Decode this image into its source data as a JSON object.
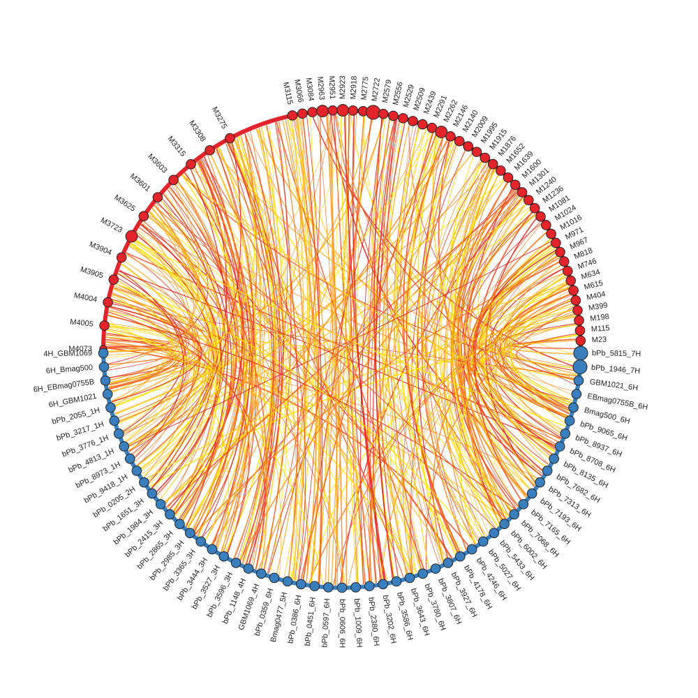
{
  "colors": {
    "red_group": "#e3242b",
    "blue_group": "#3a7fbd",
    "link_palette": [
      "#ffe600",
      "#ffd21f",
      "#ffa81f",
      "#ff7a1a",
      "#f5481f",
      "#e0201e"
    ]
  },
  "groups": {
    "red": {
      "nodes": [
        {
          "label": "M3115",
          "size": 3
        },
        {
          "label": "M3066",
          "size": 3
        },
        {
          "label": "M3084",
          "size": 3
        },
        {
          "label": "M2963",
          "size": 4
        },
        {
          "label": "M2951",
          "size": 3
        },
        {
          "label": "M2923",
          "size": 4
        },
        {
          "label": "M2918",
          "size": 3
        },
        {
          "label": "M2775",
          "size": 3
        },
        {
          "label": "M2722",
          "size": 5
        },
        {
          "label": "M2579",
          "size": 3
        },
        {
          "label": "M2556",
          "size": 3
        },
        {
          "label": "M2529",
          "size": 3
        },
        {
          "label": "M2509",
          "size": 3
        },
        {
          "label": "M2439",
          "size": 3
        },
        {
          "label": "M2291",
          "size": 3
        },
        {
          "label": "M2262",
          "size": 4
        },
        {
          "label": "M2146",
          "size": 3
        },
        {
          "label": "M2140",
          "size": 3
        },
        {
          "label": "M2009",
          "size": 3
        },
        {
          "label": "M1995",
          "size": 3
        },
        {
          "label": "M1915",
          "size": 3
        },
        {
          "label": "M1876",
          "size": 3
        },
        {
          "label": "M1652",
          "size": 3
        },
        {
          "label": "M1639",
          "size": 3
        },
        {
          "label": "M1600",
          "size": 3
        },
        {
          "label": "M1301",
          "size": 3
        },
        {
          "label": "M1240",
          "size": 3
        },
        {
          "label": "M1236",
          "size": 3
        },
        {
          "label": "M1081",
          "size": 3
        },
        {
          "label": "M1024",
          "size": 3
        },
        {
          "label": "M1016",
          "size": 3
        },
        {
          "label": "M971",
          "size": 3
        },
        {
          "label": "M967",
          "size": 3
        },
        {
          "label": "M818",
          "size": 3
        },
        {
          "label": "M746",
          "size": 3
        },
        {
          "label": "M634",
          "size": 3
        },
        {
          "label": "M615",
          "size": 3
        },
        {
          "label": "M404",
          "size": 3
        },
        {
          "label": "M399",
          "size": 3
        },
        {
          "label": "M198",
          "size": 3
        },
        {
          "label": "M115",
          "size": 3
        },
        {
          "label": "M23",
          "size": 3
        },
        {
          "label": "M4073",
          "size": 2
        },
        {
          "label": "M4005",
          "size": 3
        },
        {
          "label": "M4004",
          "size": 3
        },
        {
          "label": "M3905",
          "size": 3
        },
        {
          "label": "M3904",
          "size": 3
        },
        {
          "label": "M3723",
          "size": 4
        },
        {
          "label": "M3625",
          "size": 3
        },
        {
          "label": "M3601",
          "size": 3
        },
        {
          "label": "M3603",
          "size": 3
        },
        {
          "label": "M3315",
          "size": 3
        },
        {
          "label": "M3308",
          "size": 3
        },
        {
          "label": "M3275",
          "size": 3
        }
      ]
    },
    "blue": {
      "nodes": [
        {
          "label": "bPb_5815_7H",
          "size": 5
        },
        {
          "label": "bPb_1946_7H",
          "size": 5
        },
        {
          "label": "GBM1021_6H",
          "size": 3
        },
        {
          "label": "EBmag0755B_6H",
          "size": 3
        },
        {
          "label": "Bmag500_6H",
          "size": 3
        },
        {
          "label": "bPb_9065_6H",
          "size": 3
        },
        {
          "label": "bPb_8937_6H",
          "size": 3
        },
        {
          "label": "bPb_8708_6H",
          "size": 3
        },
        {
          "label": "bPb_8135_6H",
          "size": 3
        },
        {
          "label": "bPb_7682_6H",
          "size": 3
        },
        {
          "label": "bPb_7313_6H",
          "size": 3
        },
        {
          "label": "bPb_7193_6H",
          "size": 3
        },
        {
          "label": "bPb_7165_6H",
          "size": 3
        },
        {
          "label": "bPb_7068_6H",
          "size": 3
        },
        {
          "label": "bPb_6002_6H",
          "size": 3
        },
        {
          "label": "bPb_5433_6H",
          "size": 3
        },
        {
          "label": "bPb_5027_6H",
          "size": 3
        },
        {
          "label": "bPb_4246_6H",
          "size": 3
        },
        {
          "label": "bPb_4178_6H",
          "size": 3
        },
        {
          "label": "bPb_3927_6H",
          "size": 3
        },
        {
          "label": "bPb_3807_6H",
          "size": 3
        },
        {
          "label": "bPb_3780_6H",
          "size": 3
        },
        {
          "label": "bPb_3643_6H",
          "size": 3
        },
        {
          "label": "bPb_3586_6H",
          "size": 3
        },
        {
          "label": "bPb_3202_6H",
          "size": 3
        },
        {
          "label": "bPb_2380_6H",
          "size": 3
        },
        {
          "label": "bPb_1009_6H",
          "size": 3
        },
        {
          "label": "bPb_0606_6H",
          "size": 3
        },
        {
          "label": "bPb_0597_6H",
          "size": 3
        },
        {
          "label": "bPb_0451_6H",
          "size": 3
        },
        {
          "label": "bPb_0386_6H",
          "size": 3
        },
        {
          "label": "Bmag0477_5H",
          "size": 3
        },
        {
          "label": "bPb_0359_6H",
          "size": 3
        },
        {
          "label": "GBM1069_4H",
          "size": 3
        },
        {
          "label": "bPb_1148_4H",
          "size": 3
        },
        {
          "label": "bPb_3596_3H",
          "size": 3
        },
        {
          "label": "bPb_3527_3H",
          "size": 3
        },
        {
          "label": "bPb_3444_3H",
          "size": 3
        },
        {
          "label": "bPb_3365_3H",
          "size": 3
        },
        {
          "label": "bPb_2985_3H",
          "size": 3
        },
        {
          "label": "bPb_2865_3H",
          "size": 3
        },
        {
          "label": "bPb_2415_3H",
          "size": 3
        },
        {
          "label": "bPb_1984_3H",
          "size": 3
        },
        {
          "label": "bPb_1651_3H",
          "size": 3
        },
        {
          "label": "bPb_0205_2H",
          "size": 3
        },
        {
          "label": "bPb_9418_1H",
          "size": 3
        },
        {
          "label": "bPb_8973_1H",
          "size": 3
        },
        {
          "label": "bPb_4813_1H",
          "size": 3
        },
        {
          "label": "bPb_3776_1H",
          "size": 3
        },
        {
          "label": "bPb_3217_1H",
          "size": 3
        },
        {
          "label": "bPb_2055_1H",
          "size": 3
        },
        {
          "label": "6H_GBM1021",
          "size": 3
        },
        {
          "label": "6H_EBmag0755B",
          "size": 3
        },
        {
          "label": "6H_Bmag500",
          "size": 3
        },
        {
          "label": "4H_GBM1069",
          "size": 3
        }
      ]
    }
  }
}
